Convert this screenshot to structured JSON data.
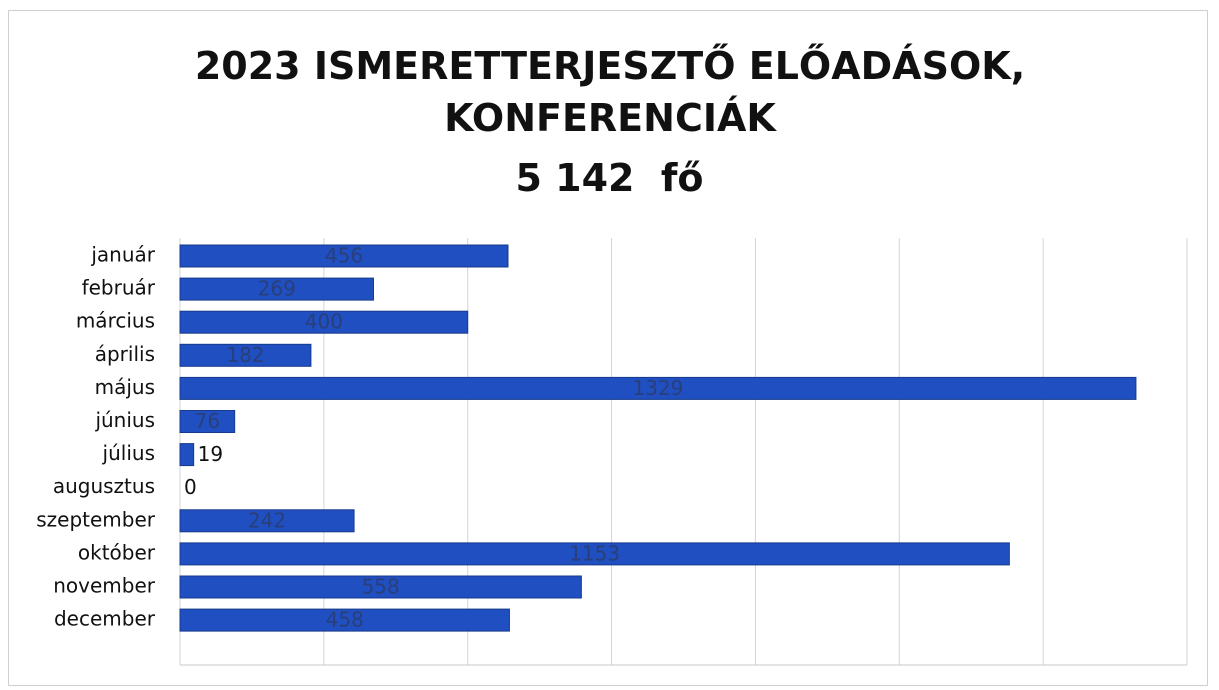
{
  "chart_data": {
    "type": "barh",
    "title": "2023 ISMERETTERJESZTŐ ELŐADÁSOK, KONFERENCIÁK",
    "subtitle": "5 142  fő",
    "categories": [
      "január",
      "február",
      "március",
      "április",
      "május",
      "június",
      "július",
      "augusztus",
      "szeptember",
      "október",
      "november",
      "december"
    ],
    "values": [
      456,
      269,
      400,
      182,
      1329,
      76,
      19,
      0,
      242,
      1153,
      558,
      458
    ],
    "color": "#1f4fc0",
    "xlim": [
      0,
      1400
    ],
    "xticks": [
      0,
      200,
      400,
      600,
      800,
      1000,
      1200,
      1400
    ],
    "grid": true
  }
}
